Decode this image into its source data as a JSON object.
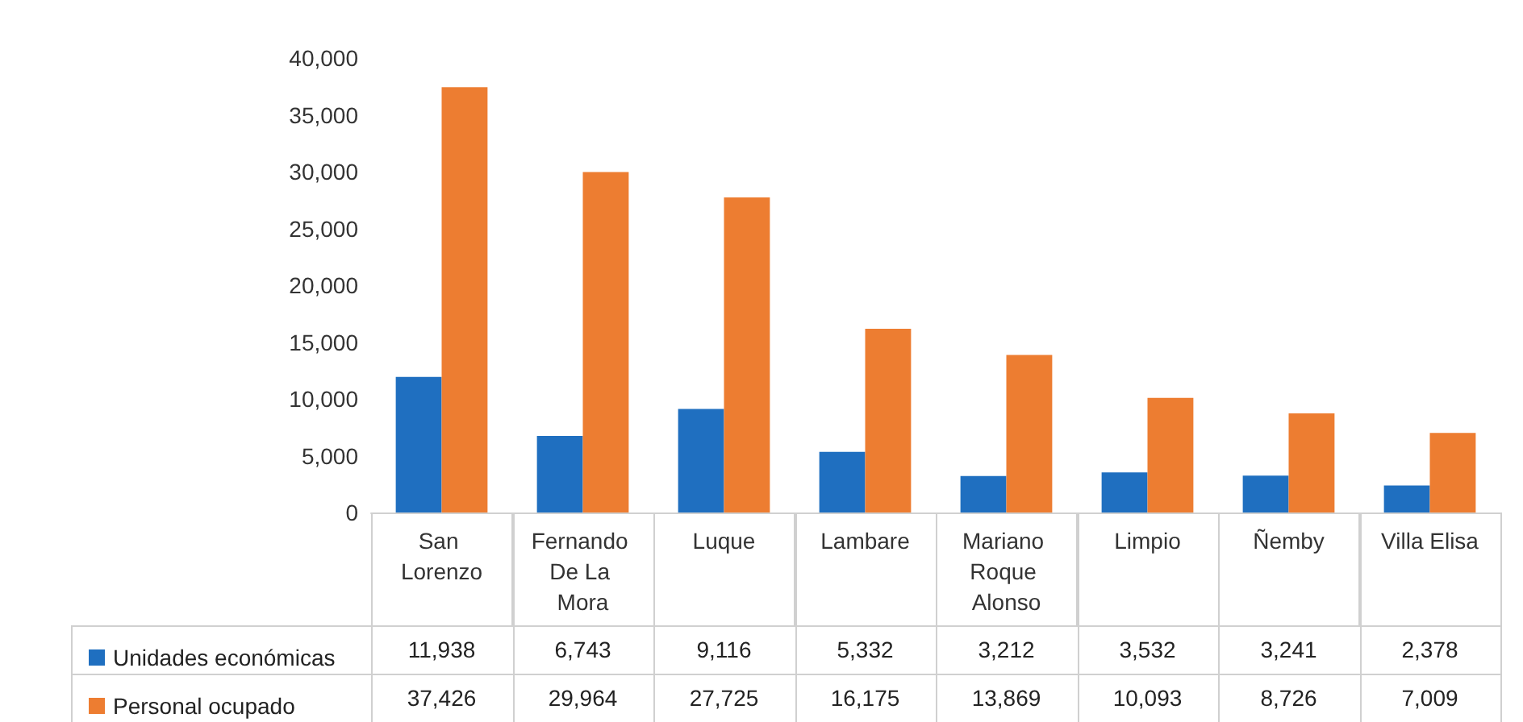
{
  "chart_data": {
    "type": "bar",
    "categories": [
      "San Lorenzo",
      "Fernando De La Mora",
      "Luque",
      "Lambare",
      "Mariano Roque Alonso",
      "Limpio",
      "Ñemby",
      "Villa Elisa"
    ],
    "series": [
      {
        "name": "Unidades económicas",
        "color": "#1f6fc0",
        "values": [
          11938,
          6743,
          9116,
          5332,
          3212,
          3532,
          3241,
          2378
        ],
        "value_labels": [
          "11,938",
          "6,743",
          "9,116",
          "5,332",
          "3,212",
          "3,532",
          "3,241",
          "2,378"
        ]
      },
      {
        "name": "Personal ocupado",
        "color": "#ed7d31",
        "values": [
          37426,
          29964,
          27725,
          16175,
          13869,
          10093,
          8726,
          7009
        ],
        "value_labels": [
          "37,426",
          "29,964",
          "27,725",
          "16,175",
          "13,869",
          "10,093",
          "8,726",
          "7,009"
        ]
      }
    ],
    "ylim": [
      0,
      40000
    ],
    "yticks": [
      {
        "value": 0,
        "label": "0"
      },
      {
        "value": 5000,
        "label": "5,000"
      },
      {
        "value": 10000,
        "label": "10,000"
      },
      {
        "value": 15000,
        "label": "15,000"
      },
      {
        "value": 20000,
        "label": "20,000"
      },
      {
        "value": 25000,
        "label": "25,000"
      },
      {
        "value": 30000,
        "label": "30,000"
      },
      {
        "value": 35000,
        "label": "35,000"
      },
      {
        "value": 40000,
        "label": "40,000"
      }
    ],
    "grid": false,
    "legend": "bottom left"
  }
}
